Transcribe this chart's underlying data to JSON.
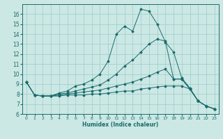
{
  "xlabel": "Humidex (Indice chaleur)",
  "bg_color": "#cce8e4",
  "grid_color": "#99cccc",
  "line_color": "#1a6b6b",
  "xlim": [
    -0.5,
    23.5
  ],
  "ylim": [
    6,
    17
  ],
  "yticks": [
    6,
    7,
    8,
    9,
    10,
    11,
    12,
    13,
    14,
    15,
    16
  ],
  "xticks": [
    0,
    1,
    2,
    3,
    4,
    5,
    6,
    7,
    8,
    9,
    10,
    11,
    12,
    13,
    14,
    15,
    16,
    17,
    18,
    19,
    20,
    21,
    22,
    23
  ],
  "lines": [
    {
      "x": [
        0,
        1,
        2,
        3,
        4,
        5,
        6,
        7,
        8,
        9,
        10,
        11,
        12,
        13,
        14,
        15,
        16,
        17,
        18,
        19,
        20,
        21,
        22,
        23
      ],
      "y": [
        9.2,
        7.9,
        7.8,
        7.8,
        8.1,
        8.3,
        8.8,
        9.0,
        9.4,
        10.0,
        11.3,
        14.0,
        14.8,
        14.3,
        16.5,
        16.3,
        15.0,
        13.2,
        12.2,
        9.6,
        8.6,
        7.3,
        6.8,
        6.5
      ]
    },
    {
      "x": [
        0,
        1,
        2,
        3,
        4,
        5,
        6,
        7,
        8,
        9,
        10,
        11,
        12,
        13,
        14,
        15,
        16,
        17,
        18,
        19,
        20,
        21,
        22,
        23
      ],
      "y": [
        9.2,
        7.9,
        7.8,
        7.8,
        8.0,
        8.1,
        8.3,
        8.5,
        8.7,
        8.9,
        9.4,
        10.0,
        10.8,
        11.4,
        12.2,
        13.0,
        13.5,
        13.3,
        9.5,
        9.5,
        8.5,
        7.3,
        6.8,
        6.5
      ]
    },
    {
      "x": [
        0,
        1,
        2,
        3,
        4,
        5,
        6,
        7,
        8,
        9,
        10,
        11,
        12,
        13,
        14,
        15,
        16,
        17,
        18,
        19,
        20,
        21,
        22,
        23
      ],
      "y": [
        9.2,
        7.9,
        7.8,
        7.8,
        7.9,
        8.0,
        8.1,
        8.2,
        8.3,
        8.4,
        8.6,
        8.8,
        9.0,
        9.2,
        9.5,
        9.8,
        10.2,
        10.5,
        9.5,
        9.5,
        8.5,
        7.3,
        6.8,
        6.5
      ]
    },
    {
      "x": [
        0,
        1,
        2,
        3,
        4,
        5,
        6,
        7,
        8,
        9,
        10,
        11,
        12,
        13,
        14,
        15,
        16,
        17,
        18,
        19,
        20,
        21,
        22,
        23
      ],
      "y": [
        9.2,
        7.9,
        7.8,
        7.8,
        7.8,
        7.9,
        7.9,
        7.9,
        8.0,
        8.0,
        8.1,
        8.2,
        8.3,
        8.3,
        8.5,
        8.6,
        8.7,
        8.8,
        8.8,
        8.8,
        8.5,
        7.3,
        6.8,
        6.5
      ]
    }
  ]
}
